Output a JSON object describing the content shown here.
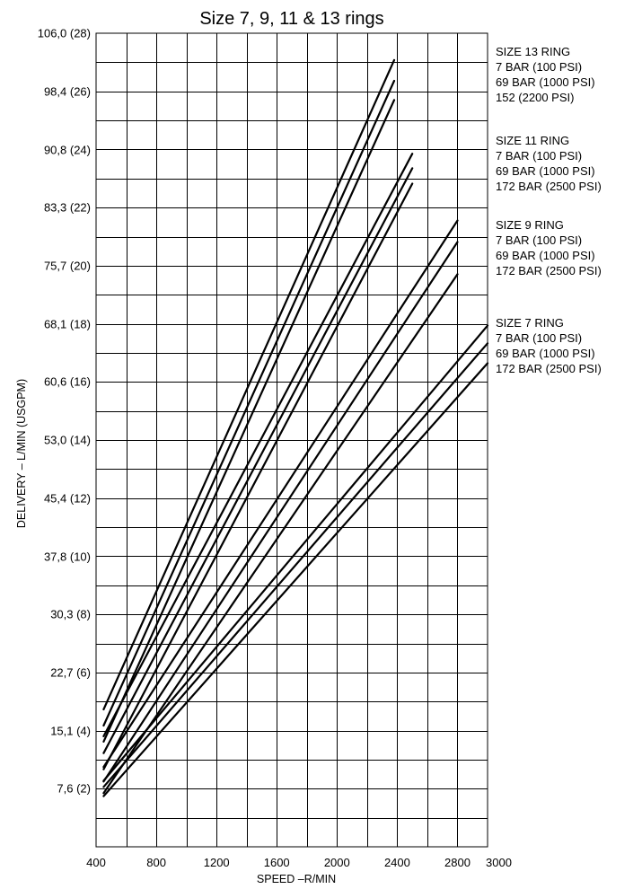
{
  "chart_data": {
    "type": "line",
    "title": "Size 7, 9, 11 & 13 rings",
    "xlabel": "SPEED –R/MIN",
    "ylabel": "DELIVERY – L/MIN (USGPM)",
    "xlim": [
      400,
      3000
    ],
    "ylim": [
      0,
      106.0
    ],
    "x_ticks": [
      400,
      800,
      1200,
      1600,
      2000,
      2400,
      2800,
      3000
    ],
    "x_tick_labels": [
      "400",
      "800",
      "1200",
      "1600",
      "2000",
      "2400",
      "2800",
      "3000"
    ],
    "y_ticks": [
      7.6,
      15.1,
      22.7,
      30.3,
      37.8,
      45.4,
      53.0,
      60.6,
      68.1,
      75.7,
      83.3,
      90.8,
      98.4,
      106.0
    ],
    "y_tick_labels": [
      "7,6 (2)",
      "15,1 (4)",
      "22,7 (6)",
      "30,3 (8)",
      "37,8 (10)",
      "45,4 (12)",
      "53,0 (14)",
      "60,6 (16)",
      "68,1 (18)",
      "75,7 (20)",
      "83,3 (22)",
      "90,8 (24)",
      "98,4 (26)",
      "106,0 (28)"
    ],
    "grid": true,
    "legend_groups": [
      {
        "heading": "SIZE 13 RING",
        "entries": [
          "7 BAR (100 PSI)",
          "69 BAR (1000 PSI)",
          "152 (2200 PSI)"
        ]
      },
      {
        "heading": "SIZE 11 RING",
        "entries": [
          "7 BAR (100 PSI)",
          "69 BAR (1000 PSI)",
          "172 BAR (2500 PSI)"
        ]
      },
      {
        "heading": "SIZE 9 RING",
        "entries": [
          "7 BAR (100 PSI)",
          "69 BAR (1000 PSI)",
          "172 BAR (2500 PSI)"
        ]
      },
      {
        "heading": "SIZE 7 RING",
        "entries": [
          "7 BAR (100 PSI)",
          "69 BAR (1000 PSI)",
          "172 BAR (2500 PSI)"
        ]
      }
    ],
    "series": [
      {
        "x": [
          450,
          2380
        ],
        "y": [
          17.9,
          102.5
        ]
      },
      {
        "x": [
          450,
          2380
        ],
        "y": [
          15.8,
          99.8
        ]
      },
      {
        "x": [
          450,
          2380
        ],
        "y": [
          13.7,
          97.3
        ]
      },
      {
        "x": [
          450,
          2500
        ],
        "y": [
          14.4,
          90.3
        ]
      },
      {
        "x": [
          450,
          2500
        ],
        "y": [
          12.2,
          88.4
        ]
      },
      {
        "x": [
          450,
          2500
        ],
        "y": [
          10.1,
          86.4
        ]
      },
      {
        "x": [
          450,
          2800
        ],
        "y": [
          10.4,
          81.6
        ]
      },
      {
        "x": [
          450,
          2800
        ],
        "y": [
          8.5,
          78.8
        ]
      },
      {
        "x": [
          450,
          2800
        ],
        "y": [
          7.0,
          74.6
        ]
      },
      {
        "x": [
          450,
          3000
        ],
        "y": [
          8.6,
          67.9
        ]
      },
      {
        "x": [
          450,
          3000
        ],
        "y": [
          7.8,
          65.6
        ]
      },
      {
        "x": [
          450,
          3000
        ],
        "y": [
          6.6,
          63.0
        ]
      }
    ]
  }
}
